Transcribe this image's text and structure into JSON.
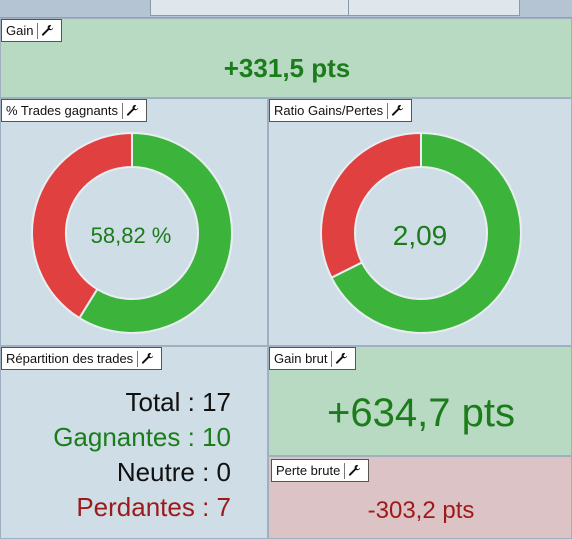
{
  "gain": {
    "title": "Gain",
    "value": "+331,5 pts"
  },
  "win_rate": {
    "title": "% Trades gagnants",
    "value": "58,82 %",
    "percent": 58.82
  },
  "ratio": {
    "title": "Ratio Gains/Pertes",
    "value": "2,09",
    "green_fraction": 0.6764
  },
  "distribution": {
    "title": "Répartition des trades",
    "rows": [
      {
        "label": "Total",
        "sep": " : ",
        "value": "17",
        "color": "#111111"
      },
      {
        "label": "Gagnantes",
        "sep": " : ",
        "value": "10",
        "color": "#1a7d1a"
      },
      {
        "label": "Neutre",
        "sep": " : ",
        "value": "0",
        "color": "#111111"
      },
      {
        "label": "Perdantes",
        "sep": " : ",
        "value": "7",
        "color": "#9b1a1a"
      }
    ]
  },
  "gross_gain": {
    "title": "Gain brut",
    "value": "+634,7 pts"
  },
  "gross_loss": {
    "title": "Perte brute",
    "value": "-303,2 pts"
  },
  "colors": {
    "green": "#3cb43c",
    "red": "#e04040",
    "green_text": "#1a7d1a",
    "red_text": "#9b1a1a"
  },
  "icons": {
    "settings": "wrench-icon"
  }
}
